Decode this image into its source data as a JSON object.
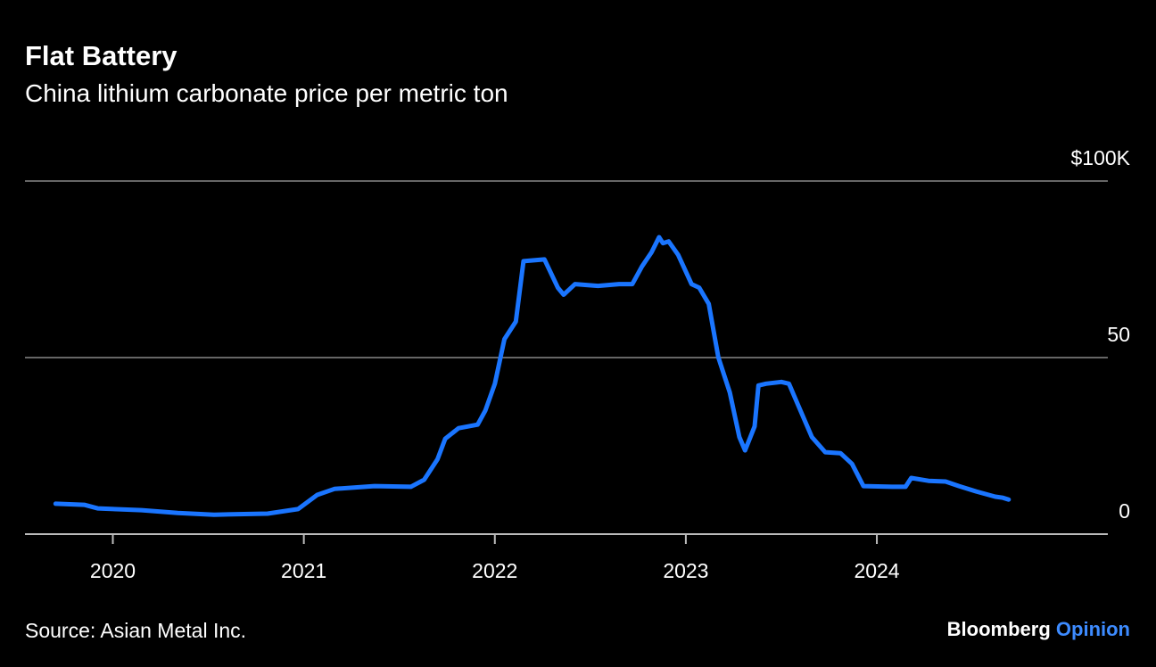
{
  "chart_data": {
    "type": "line",
    "title": "Flat Battery",
    "subtitle": "China lithium carbonate price per metric ton",
    "source": "Source: Asian Metal Inc.",
    "brand": {
      "name": "Bloomberg",
      "section": "Opinion"
    },
    "xlim": [
      2019.54,
      2025.2
    ],
    "xticks": [
      2020,
      2021,
      2022,
      2023,
      2024
    ],
    "ylim": [
      0,
      100
    ],
    "yticks": [
      0,
      50,
      {
        "value": 100,
        "label": "$100K"
      }
    ],
    "grid": true,
    "series": [
      {
        "color": "#1a75ff",
        "x": [
          2019.7,
          2019.85,
          2019.92,
          2020.15,
          2020.34,
          2020.53,
          2020.81,
          2020.97,
          2021.07,
          2021.16,
          2021.37,
          2021.56,
          2021.63,
          2021.7,
          2021.74,
          2021.81,
          2021.91,
          2021.95,
          2022.0,
          2022.05,
          2022.11,
          2022.15,
          2022.26,
          2022.33,
          2022.36,
          2022.42,
          2022.54,
          2022.65,
          2022.72,
          2022.77,
          2022.82,
          2022.86,
          2022.88,
          2022.91,
          2022.96,
          2023.03,
          2023.07,
          2023.12,
          2023.17,
          2023.23,
          2023.28,
          2023.31,
          2023.36,
          2023.38,
          2023.42,
          2023.5,
          2023.54,
          2023.59,
          2023.66,
          2023.73,
          2023.81,
          2023.87,
          2023.93,
          2024.08,
          2024.15,
          2024.18,
          2024.27,
          2024.36,
          2024.43,
          2024.52,
          2024.62,
          2024.66,
          2024.69
        ],
        "values": [
          8.6,
          8.3,
          7.3,
          6.8,
          6.0,
          5.5,
          5.8,
          7.1,
          11.1,
          12.8,
          13.6,
          13.4,
          15.4,
          21.2,
          27.0,
          30.0,
          31.0,
          35.0,
          42.6,
          55.2,
          60.2,
          77.3,
          77.8,
          69.8,
          67.8,
          70.8,
          70.3,
          70.8,
          70.8,
          75.8,
          79.8,
          84.1,
          82.4,
          82.9,
          79.1,
          70.8,
          69.8,
          65.2,
          50.1,
          40.1,
          27.5,
          23.7,
          30.5,
          42.1,
          42.6,
          43.1,
          42.6,
          36.3,
          27.5,
          23.2,
          22.9,
          19.9,
          13.6,
          13.4,
          13.4,
          15.9,
          15.1,
          14.9,
          13.6,
          12.1,
          10.6,
          10.3,
          9.8
        ]
      }
    ]
  }
}
